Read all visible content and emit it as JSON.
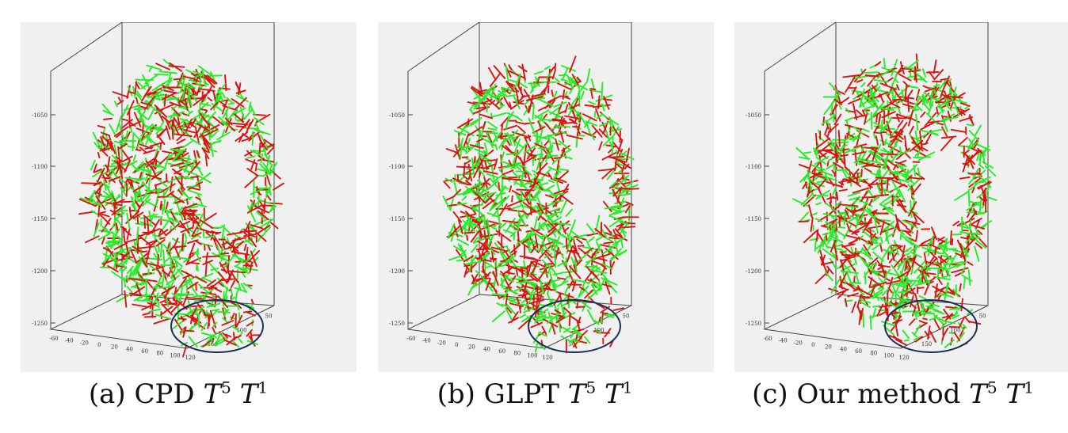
{
  "figure": {
    "panels": [
      {
        "id": "a",
        "caption_prefix": "(a) CPD ",
        "t_high_base": "T",
        "t_high_exp": "5",
        "t_low_base": "T",
        "t_low_exp": "1"
      },
      {
        "id": "b",
        "caption_prefix": "(b) GLPT ",
        "t_high_base": "T",
        "t_high_exp": "5",
        "t_low_base": "T",
        "t_low_exp": "1"
      },
      {
        "id": "c",
        "caption_prefix": "(c) Our method ",
        "t_high_base": "T",
        "t_high_exp": "5",
        "t_low_base": "T",
        "t_low_exp": "1"
      }
    ],
    "z_ticks": [
      "-1050",
      "-1100",
      "-1150",
      "-1200",
      "-1250"
    ],
    "x_ticks": [
      "-60",
      "-40",
      "-20",
      "0",
      "20",
      "40",
      "60",
      "80",
      "100",
      "120"
    ],
    "y_ticks": [
      "50",
      "100",
      "150"
    ],
    "colors": {
      "series_green": "#22ee22",
      "series_red": "#dd1111",
      "highlight_ellipse": "#1a2e5a",
      "axes": "#444444",
      "panel_bg": "#f0f0f0"
    }
  }
}
